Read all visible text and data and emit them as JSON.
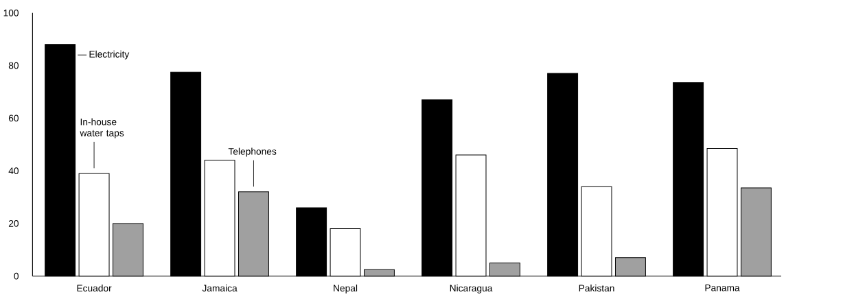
{
  "chart_data": {
    "type": "bar",
    "categories": [
      "Ecuador",
      "Jamaica",
      "Nepal",
      "Nicaragua",
      "Pakistan",
      "Panama"
    ],
    "series": [
      {
        "name": "Electricity",
        "color": "#000000",
        "values": [
          88,
          77.5,
          26,
          67,
          77,
          73.5
        ]
      },
      {
        "name": "In-house water taps",
        "color": "#ffffff",
        "values": [
          39,
          44,
          18,
          46,
          34,
          48.5
        ]
      },
      {
        "name": "Telephones",
        "color": "#a0a0a0",
        "values": [
          20,
          32,
          2.5,
          5,
          7,
          33.5
        ]
      }
    ],
    "ylim": [
      0,
      100
    ],
    "yticks": [
      0,
      20,
      40,
      60,
      80,
      100
    ]
  }
}
